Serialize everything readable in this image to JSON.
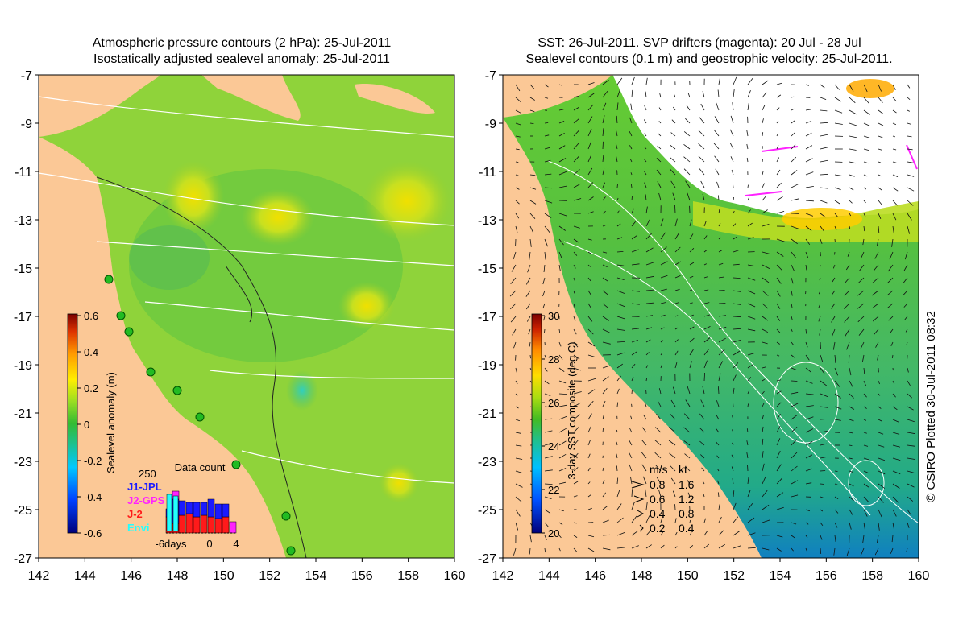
{
  "left_panel": {
    "title_line1": "Atmospheric pressure contours (2 hPa): 25-Jul-2011",
    "title_line2": "Isostatically adjusted sealevel anomaly: 25-Jul-2011",
    "colorbar": {
      "label": "Sealevel anomaly (m)",
      "ticks": [
        "0.6",
        "0.4",
        "0.2",
        "0",
        "-0.2",
        "-0.4",
        "-0.6"
      ],
      "range": [
        -0.6,
        0.6
      ]
    },
    "data_count": {
      "title": "Data count",
      "ymax_label": "250",
      "legend": [
        {
          "label": "J1-JPL",
          "color": "#1a1aff"
        },
        {
          "label": "J2-GPS",
          "color": "#ff22ff"
        },
        {
          "label": "J-2",
          "color": "#ff1a1a"
        },
        {
          "label": "Envi",
          "color": "#22ffff"
        }
      ],
      "x_ticks": [
        "-6days",
        "0",
        "4"
      ]
    }
  },
  "right_panel": {
    "title_line1": "SST: 26-Jul-2011. SVP drifters (magenta): 20 Jul - 28 Jul",
    "title_line2": "Sealevel contours (0.1 m) and geostrophic velocity: 25-Jul-2011.",
    "colorbar": {
      "label": "3-day SST composite (deg C)",
      "ticks": [
        "30",
        "28",
        "26",
        "24",
        "22",
        "20"
      ],
      "range": [
        20,
        30
      ]
    },
    "velocity_legend": {
      "header_ms": "m/s",
      "header_kt": "kt",
      "rows": [
        {
          "ms": "0.8",
          "kt": "1.6"
        },
        {
          "ms": "0.6",
          "kt": "1.2"
        },
        {
          "ms": "0.4",
          "kt": "0.8"
        },
        {
          "ms": "0.2",
          "kt": "0.4"
        }
      ]
    }
  },
  "axes": {
    "x_ticks": [
      "142",
      "144",
      "146",
      "148",
      "150",
      "152",
      "154",
      "156",
      "158",
      "160"
    ],
    "y_ticks": [
      "-7",
      "-9",
      "-11",
      "-13",
      "-15",
      "-17",
      "-19",
      "-21",
      "-23",
      "-25",
      "-27"
    ]
  },
  "copyright": "© CSIRO Plotted 30-Jul-2011 08:32",
  "colors": {
    "land": "#fbc896",
    "ocean_mid": "#66cc33",
    "missing": "#ffffff"
  }
}
